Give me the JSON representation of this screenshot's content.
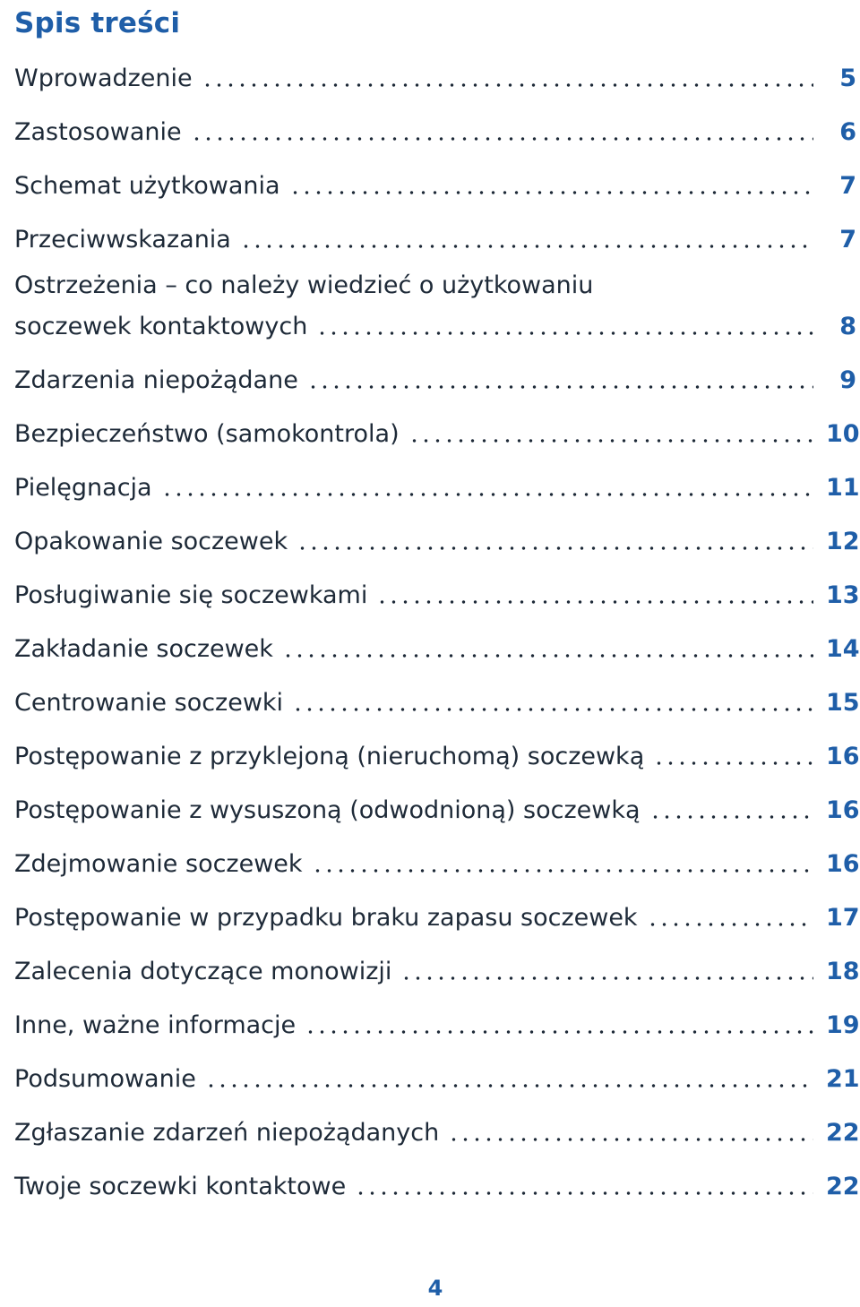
{
  "title": "Spis treści",
  "entries": [
    {
      "label": "Wprowadzenie",
      "page": "5"
    },
    {
      "label": "Zastosowanie",
      "page": "6"
    },
    {
      "label": "Schemat użytkowania",
      "page": "7"
    },
    {
      "label": "Przeciwwskazania",
      "page": "7"
    },
    {
      "label_line1": "Ostrzeżenia – co należy wiedzieć o użytkowaniu",
      "label": "soczewek kontaktowych",
      "page": "8"
    },
    {
      "label": "Zdarzenia niepożądane",
      "page": "9"
    },
    {
      "label": "Bezpieczeństwo (samokontrola)",
      "page": "10"
    },
    {
      "label": "Pielęgnacja",
      "page": "11"
    },
    {
      "label": "Opakowanie soczewek",
      "page": "12"
    },
    {
      "label": "Posługiwanie się soczewkami",
      "page": "13"
    },
    {
      "label": "Zakładanie soczewek",
      "page": "14"
    },
    {
      "label": "Centrowanie soczewki",
      "page": "15"
    },
    {
      "label": "Postępowanie z przyklejoną (nieruchomą) soczewką",
      "page": "16"
    },
    {
      "label": "Postępowanie z wysuszoną (odwodnioną) soczewką",
      "page": "16"
    },
    {
      "label": "Zdejmowanie soczewek",
      "page": "16"
    },
    {
      "label": "Postępowanie w przypadku braku zapasu soczewek",
      "page": "17"
    },
    {
      "label": "Zalecenia dotyczące monowizji",
      "page": "18"
    },
    {
      "label": "Inne, ważne informacje",
      "page": "19"
    },
    {
      "label": "Podsumowanie",
      "page": "21"
    },
    {
      "label": "Zgłaszanie zdarzeń niepożądanych",
      "page": "22"
    },
    {
      "label": "Twoje soczewki kontaktowe",
      "page": "22"
    }
  ],
  "footer": {
    "page_number": "4"
  }
}
